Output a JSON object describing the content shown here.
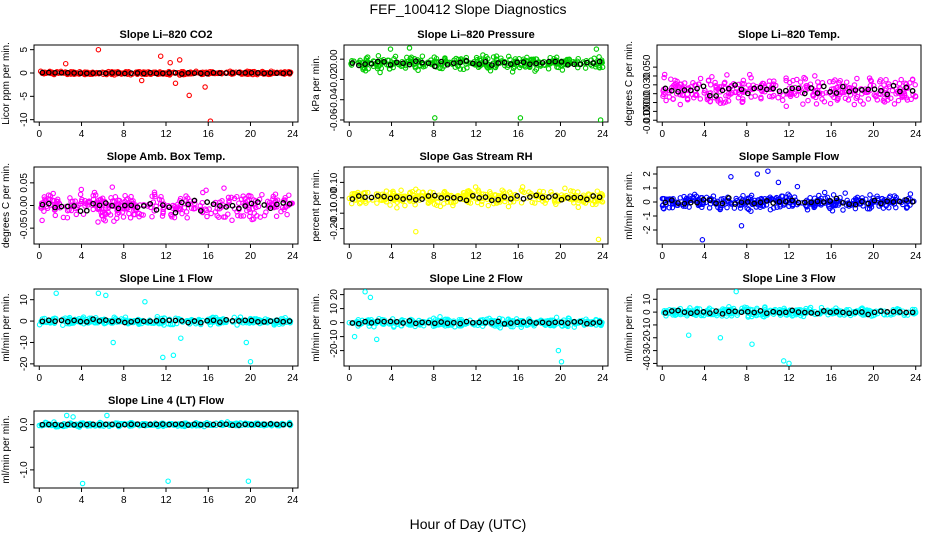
{
  "figure": {
    "title": "FEF_100412  Slope Diagnostics",
    "xlabel": "Hour of Day (UTC)"
  },
  "chart_data": [
    {
      "type": "scatter",
      "title": "Slope Li–820 CO2",
      "ylabel": "Licor ppm per min.",
      "color": "#ff0000",
      "ylim": [
        -10.5,
        6
      ],
      "yticks": [
        -10,
        -5,
        0,
        5
      ],
      "ytick_labels": [
        "-10",
        "-5",
        "0",
        "5"
      ],
      "xlim": [
        -0.5,
        24.5
      ],
      "xticks": [
        0,
        4,
        8,
        12,
        16,
        20,
        24
      ],
      "xtick_labels": [
        "0",
        "4",
        "8",
        "12",
        "16",
        "20",
        "24"
      ],
      "spread": 0.6,
      "base": 0,
      "outliers": [
        [
          5.6,
          5
        ],
        [
          11.5,
          3.6
        ],
        [
          12.4,
          2.2
        ],
        [
          13.3,
          2.8
        ],
        [
          14.2,
          -4.8
        ],
        [
          15.7,
          -3
        ],
        [
          16.2,
          -10.3
        ],
        [
          9.7,
          -1.6
        ],
        [
          2.5,
          2
        ],
        [
          12.9,
          -2.2
        ]
      ]
    },
    {
      "type": "scatter",
      "title": "Slope Li–820 Pressure",
      "ylabel": "kPa per min.",
      "color": "#00cc00",
      "ylim": [
        -0.062,
        0.014
      ],
      "yticks": [
        -0.06,
        -0.04,
        -0.02,
        0
      ],
      "ytick_labels": [
        "-0.06",
        "-0.04",
        "-0.02",
        "0.00"
      ],
      "xlim": [
        -0.5,
        24.5
      ],
      "xticks": [
        0,
        4,
        8,
        12,
        16,
        20,
        24
      ],
      "xtick_labels": [
        "0",
        "4",
        "8",
        "12",
        "16",
        "20",
        "24"
      ],
      "spread": 0.012,
      "base": -0.004,
      "outliers": [
        [
          8.1,
          -0.058
        ],
        [
          16.2,
          -0.058
        ],
        [
          23.8,
          -0.06
        ],
        [
          3.9,
          0.01
        ],
        [
          5.7,
          0.011
        ],
        [
          23.4,
          0.01
        ]
      ]
    },
    {
      "type": "scatter",
      "title": "Slope Li–820 Temp.",
      "ylabel": "degrees C per min.",
      "color": "#ff00ff",
      "ylim": [
        -0.012,
        0.075
      ],
      "yticks": [
        -0.01,
        0,
        0.01,
        0.02,
        0.03,
        0.04,
        0.05
      ],
      "ytick_labels": [
        "-0.010",
        "0.000",
        "0.010",
        "",
        "0.030",
        "",
        "0.050"
      ],
      "xlim": [
        -0.5,
        24.5
      ],
      "xticks": [
        0,
        4,
        8,
        12,
        16,
        20,
        24
      ],
      "xtick_labels": [
        "0",
        "4",
        "8",
        "12",
        "16",
        "20",
        "24"
      ],
      "spread": 0.028,
      "base": 0.024,
      "outliers": []
    },
    {
      "type": "scatter",
      "title": "Slope Amb. Box Temp.",
      "ylabel": "degrees C per min.",
      "color": "#ff00ff",
      "ylim": [
        -0.085,
        0.085
      ],
      "yticks": [
        -0.05,
        0,
        0.05
      ],
      "ytick_labels": [
        "-0.05",
        "0.00",
        "0.05"
      ],
      "xlim": [
        -0.5,
        24.5
      ],
      "xticks": [
        0,
        4,
        8,
        12,
        16,
        20,
        24
      ],
      "xtick_labels": [
        "0",
        "4",
        "8",
        "12",
        "16",
        "20",
        "24"
      ],
      "spread": 0.05,
      "base": 0,
      "outliers": []
    },
    {
      "type": "scatter",
      "title": "Slope Gas Stream RH",
      "ylabel": "percent per min.",
      "color": "#ffff00",
      "ylim": [
        -0.3,
        0.2
      ],
      "yticks": [
        -0.2,
        -0.1,
        0,
        0.1
      ],
      "ytick_labels": [
        "-0.20",
        "-0.10",
        "0.00",
        "0.10"
      ],
      "xlim": [
        -0.5,
        24.5
      ],
      "xticks": [
        0,
        4,
        8,
        12,
        16,
        20,
        24
      ],
      "xtick_labels": [
        "0",
        "4",
        "8",
        "12",
        "16",
        "20",
        "24"
      ],
      "spread": 0.09,
      "base": 0,
      "outliers": [
        [
          23.6,
          -0.27
        ],
        [
          6.3,
          -0.22
        ]
      ]
    },
    {
      "type": "scatter",
      "title": "Slope Sample Flow",
      "ylabel": "ml/min per min.",
      "color": "#0000ff",
      "ylim": [
        -3,
        2.5
      ],
      "yticks": [
        -2,
        -1,
        0,
        1,
        2
      ],
      "ytick_labels": [
        "-2",
        "-1",
        "0",
        "1",
        "2"
      ],
      "xlim": [
        -0.5,
        24.5
      ],
      "xticks": [
        0,
        4,
        8,
        12,
        16,
        20,
        24
      ],
      "xtick_labels": [
        "0",
        "4",
        "8",
        "12",
        "16",
        "20",
        "24"
      ],
      "spread": 0.9,
      "base": 0,
      "outliers": [
        [
          3.8,
          -2.7
        ],
        [
          6.5,
          1.8
        ],
        [
          9,
          2
        ],
        [
          10,
          2.2
        ],
        [
          11,
          1.4
        ],
        [
          7.5,
          -1.7
        ],
        [
          12.8,
          1.1
        ]
      ]
    },
    {
      "type": "scatter",
      "title": "Slope Line 1 Flow",
      "ylabel": "ml/min per min.",
      "color": "#00ffff",
      "ylim": [
        -21,
        15
      ],
      "yticks": [
        -20,
        -10,
        0,
        10
      ],
      "ytick_labels": [
        "-20",
        "-10",
        "0",
        "10"
      ],
      "xlim": [
        -0.5,
        24.5
      ],
      "xticks": [
        0,
        4,
        8,
        12,
        16,
        20,
        24
      ],
      "xtick_labels": [
        "0",
        "4",
        "8",
        "12",
        "16",
        "20",
        "24"
      ],
      "spread": 3,
      "base": 0,
      "outliers": [
        [
          1.6,
          13
        ],
        [
          5.6,
          13
        ],
        [
          6.3,
          12
        ],
        [
          11.7,
          -17
        ],
        [
          12.7,
          -16
        ],
        [
          20,
          -19
        ],
        [
          7,
          -10
        ],
        [
          10,
          9
        ],
        [
          13.4,
          -8
        ],
        [
          19.6,
          -10
        ]
      ]
    },
    {
      "type": "scatter",
      "title": "Slope Line 2 Flow",
      "ylabel": "ml/min per min.",
      "color": "#00ffff",
      "ylim": [
        -31,
        24
      ],
      "yticks": [
        -20,
        -10,
        0,
        10,
        20
      ],
      "ytick_labels": [
        "-20",
        "-10",
        "0",
        "10",
        "20"
      ],
      "xlim": [
        -0.5,
        24.5
      ],
      "xticks": [
        0,
        4,
        8,
        12,
        16,
        20,
        24
      ],
      "xtick_labels": [
        "0",
        "4",
        "8",
        "12",
        "16",
        "20",
        "24"
      ],
      "spread": 5,
      "base": 0,
      "outliers": [
        [
          1.5,
          22
        ],
        [
          2,
          18
        ],
        [
          19.8,
          -20
        ],
        [
          20.1,
          -28
        ],
        [
          0.5,
          -10
        ],
        [
          2.6,
          -12
        ]
      ]
    },
    {
      "type": "scatter",
      "title": "Slope Line 3 Flow",
      "ylabel": "ml/min per min.",
      "color": "#00ffff",
      "ylim": [
        -42,
        18
      ],
      "yticks": [
        -40,
        -30,
        -20,
        -10,
        0,
        10
      ],
      "ytick_labels": [
        "-40",
        "-30",
        "-20",
        "-10",
        "0",
        "10"
      ],
      "xlim": [
        -0.5,
        24.5
      ],
      "xticks": [
        0,
        4,
        8,
        12,
        16,
        20,
        24
      ],
      "xtick_labels": [
        "0",
        "4",
        "8",
        "12",
        "16",
        "20",
        "24"
      ],
      "spread": 6,
      "base": 0,
      "outliers": [
        [
          11.5,
          -38
        ],
        [
          12,
          -40
        ],
        [
          5.5,
          -20
        ],
        [
          7,
          16
        ],
        [
          2.5,
          -18
        ],
        [
          8.5,
          -25
        ]
      ]
    },
    {
      "type": "scatter",
      "title": "Slope Line 4 (LT) Flow",
      "ylabel": "ml/min per min.",
      "color": "#00ffff",
      "ylim": [
        -1.4,
        0.3
      ],
      "yticks": [
        -1,
        -0.5,
        0
      ],
      "ytick_labels": [
        "-1.0",
        "",
        "0.0"
      ],
      "xlim": [
        -0.5,
        24.5
      ],
      "xticks": [
        0,
        4,
        8,
        12,
        16,
        20,
        24
      ],
      "xtick_labels": [
        "0",
        "4",
        "8",
        "12",
        "16",
        "20",
        "24"
      ],
      "spread": 0.07,
      "base": 0,
      "outliers": [
        [
          4.1,
          -1.3
        ],
        [
          12.2,
          -1.25
        ],
        [
          19.8,
          -1.25
        ],
        [
          2.6,
          0.2
        ],
        [
          3.2,
          0.17
        ],
        [
          6.4,
          0.2
        ]
      ]
    }
  ]
}
